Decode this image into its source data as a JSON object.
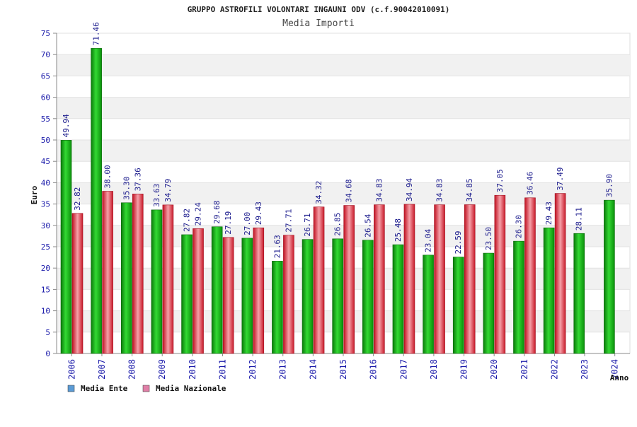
{
  "chart_data": {
    "type": "bar",
    "title": "GRUPPO ASTROFILI VOLONTARI INGAUNI ODV (c.f.90042010091)",
    "subtitle": "Media Importi",
    "ylabel": "Euro",
    "xlabel": "Anno",
    "ylim": [
      0,
      75
    ],
    "yticks": [
      0,
      5,
      10,
      15,
      20,
      25,
      30,
      35,
      40,
      45,
      50,
      55,
      60,
      65,
      70,
      75
    ],
    "grid": "horizontal bands",
    "legend_position": "bottom-left",
    "categories": [
      "2006",
      "2007",
      "2008",
      "2009",
      "2010",
      "2011",
      "2012",
      "2013",
      "2014",
      "2015",
      "2016",
      "2017",
      "2018",
      "2019",
      "2020",
      "2021",
      "2022",
      "2023",
      "2024"
    ],
    "series": [
      {
        "name": "Media Ente",
        "legend_color": "#5b9bd5",
        "bar_color": "#14b814",
        "values": [
          49.94,
          71.46,
          35.3,
          33.63,
          27.82,
          29.68,
          27.0,
          21.63,
          26.71,
          26.85,
          26.54,
          25.48,
          23.04,
          22.59,
          23.5,
          26.3,
          29.43,
          28.11,
          35.9
        ],
        "labels": [
          "49.94",
          "71.46",
          "35.30",
          "33.63",
          "27.82",
          "29.68",
          "27.00",
          "21.63",
          "26.71",
          "26.85",
          "26.54",
          "25.48",
          "23.04",
          "22.59",
          "23.50",
          "26.30",
          "29.43",
          "28.11",
          "35.90"
        ]
      },
      {
        "name": "Media Nazionale",
        "legend_color": "#e07fa7",
        "bar_color": "#e23a48",
        "values": [
          32.82,
          38.0,
          37.36,
          34.79,
          29.24,
          27.19,
          29.43,
          27.71,
          34.32,
          34.68,
          34.83,
          34.94,
          34.83,
          34.85,
          37.05,
          36.46,
          37.49,
          null,
          null
        ],
        "labels": [
          "32.82",
          "38.00",
          "37.36",
          "34.79",
          "29.24",
          "27.19",
          "29.43",
          "27.71",
          "34.32",
          "34.68",
          "34.83",
          "34.94",
          "34.83",
          "34.85",
          "37.05",
          "36.46",
          "37.49",
          null,
          null
        ]
      }
    ]
  }
}
